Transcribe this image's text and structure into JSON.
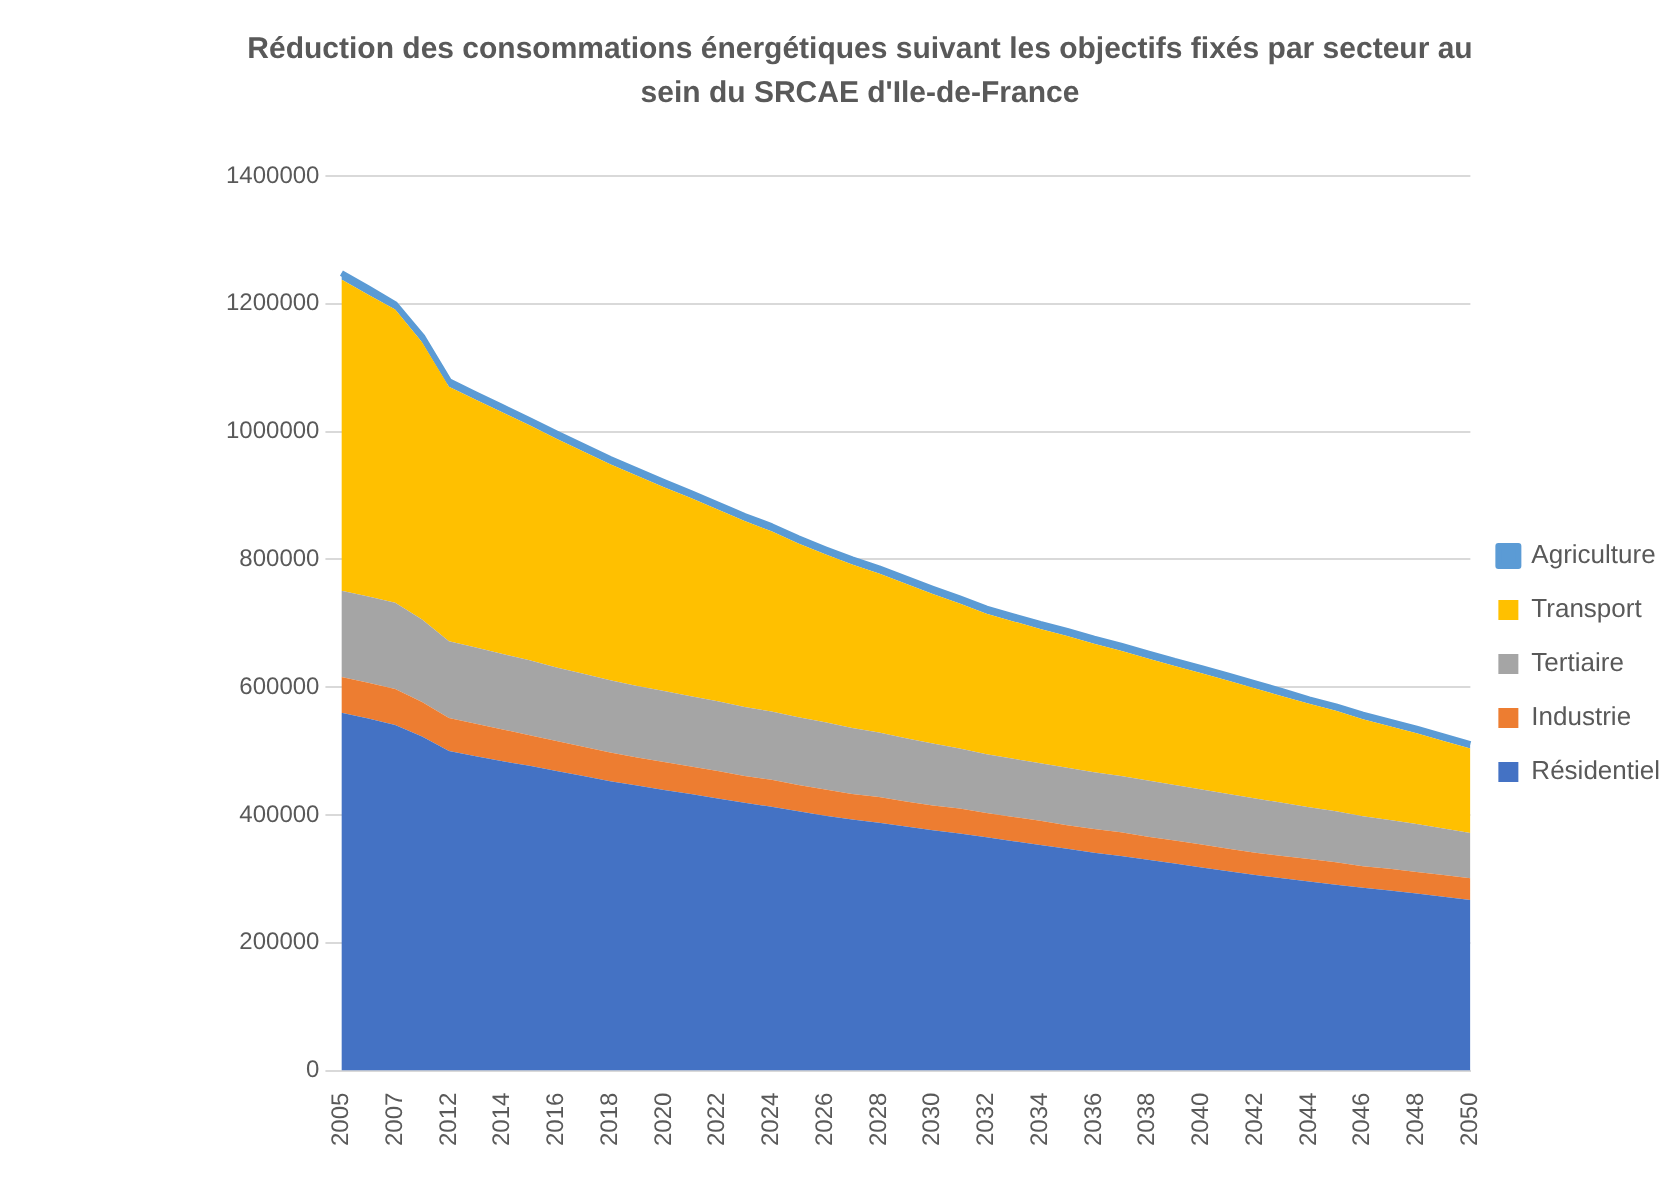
{
  "chart_data": {
    "type": "area",
    "title": "Réduction des consommations énergétiques suivant les objectifs fixés par secteur au sein du SRCAE d'Ile-de-France",
    "categories": [
      "2005",
      null,
      "2007",
      null,
      "2012",
      null,
      "2014",
      null,
      "2016",
      null,
      "2018",
      null,
      "2020",
      null,
      "2022",
      null,
      "2024",
      null,
      "2026",
      null,
      "2028",
      null,
      "2030",
      null,
      "2032",
      null,
      "2034",
      null,
      "2036",
      null,
      "2038",
      null,
      "2040",
      null,
      "2042",
      null,
      "2044",
      null,
      "2046",
      null,
      "2048",
      null,
      "2050"
    ],
    "stacked": true,
    "ylim": [
      0,
      1400000
    ],
    "yticks": [
      0,
      200000,
      400000,
      600000,
      800000,
      1000000,
      1200000,
      1400000
    ],
    "grid": "y",
    "legend": "right",
    "series": [
      {
        "name": "Résidentiel",
        "color": "#4472c4",
        "values": [
          560000,
          551000,
          541000,
          523000,
          500000,
          492000,
          484000,
          477000,
          469000,
          461000,
          453000,
          446000,
          439000,
          433000,
          426000,
          419000,
          413000,
          406000,
          399000,
          393000,
          388000,
          382000,
          376000,
          371000,
          365000,
          359000,
          353000,
          347000,
          341000,
          336000,
          330000,
          324000,
          318000,
          312000,
          306000,
          301000,
          296000,
          291000,
          286000,
          282000,
          277000,
          272000,
          267000
        ]
      },
      {
        "name": "Industrie",
        "color": "#ed7d31",
        "values": [
          56000,
          56000,
          56000,
          54000,
          52000,
          51000,
          50000,
          48000,
          47000,
          46000,
          45000,
          44000,
          44000,
          43000,
          43000,
          42000,
          42000,
          41000,
          41000,
          40000,
          40000,
          39000,
          39000,
          39000,
          38000,
          38000,
          38000,
          37000,
          37000,
          37000,
          36000,
          36000,
          36000,
          35000,
          35000,
          35000,
          35000,
          35000,
          34000,
          34000,
          34000,
          34000,
          34000
        ]
      },
      {
        "name": "Tertiaire",
        "color": "#a5a5a5",
        "values": [
          135000,
          135000,
          135000,
          129000,
          120000,
          119000,
          118000,
          117000,
          115000,
          114000,
          113000,
          112000,
          111000,
          110000,
          109000,
          108000,
          107000,
          106000,
          105000,
          103000,
          101000,
          99000,
          97000,
          94000,
          92000,
          91000,
          90000,
          90000,
          89000,
          88000,
          88000,
          87000,
          86000,
          86000,
          85000,
          83000,
          81000,
          80000,
          78000,
          76000,
          75000,
          73000,
          71000
        ]
      },
      {
        "name": "Transport",
        "color": "#ffc000",
        "values": [
          487000,
          472000,
          459000,
          434000,
          398000,
          388000,
          378000,
          368000,
          358000,
          348000,
          338000,
          329000,
          319000,
          310000,
          300000,
          291000,
          282000,
          272000,
          263000,
          256000,
          249000,
          242000,
          234000,
          227000,
          220000,
          215000,
          210000,
          206000,
          201000,
          196000,
          191000,
          186000,
          182000,
          177000,
          172000,
          167000,
          162000,
          157000,
          152000,
          147000,
          142000,
          137000,
          132000
        ]
      },
      {
        "name": "Agriculture",
        "color": "#5b9bd5",
        "values": [
          10000,
          10000,
          8000,
          9000,
          9000,
          8000,
          8000,
          8000,
          8000,
          8000,
          8000,
          8000,
          8000,
          8000,
          8000,
          8000,
          8000,
          8000,
          8000,
          8000,
          8000,
          8000,
          8000,
          8000,
          8000,
          8000,
          8000,
          8000,
          8000,
          8000,
          8000,
          8000,
          8000,
          8000,
          8000,
          8000,
          7000,
          7000,
          7000,
          7000,
          7000,
          7000,
          7000
        ]
      }
    ]
  }
}
